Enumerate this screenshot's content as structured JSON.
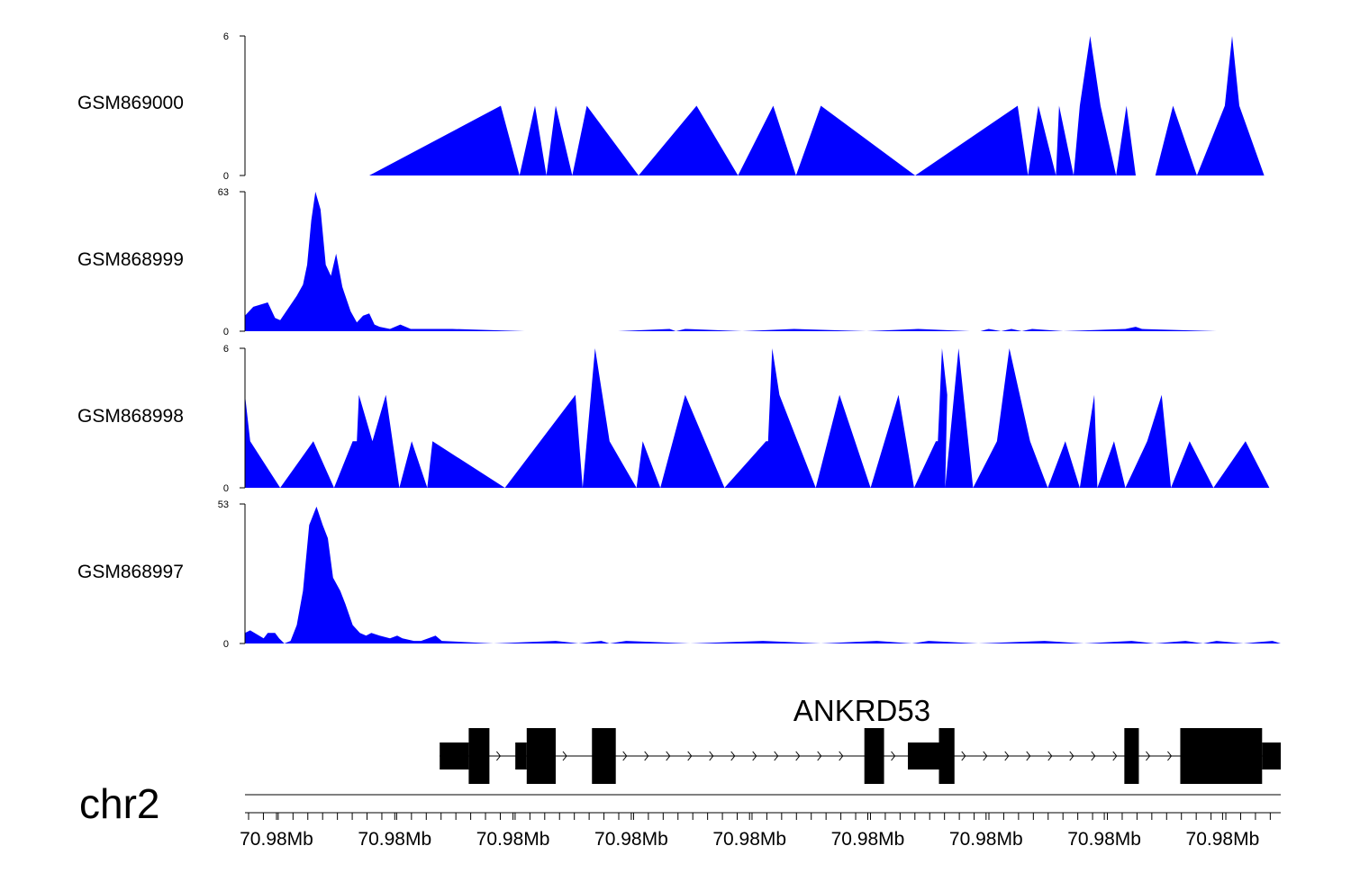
{
  "chart_data": {
    "type": "area",
    "chromosome": "chr2",
    "fill_color": "#0000ff",
    "x_range_index": [
      0,
      100
    ],
    "tracks": [
      {
        "name": "GSM869000",
        "ylim": [
          0,
          6
        ],
        "y_ticks": [
          "0",
          "6"
        ],
        "points": [
          [
            12,
            0
          ],
          [
            24.7,
            3
          ],
          [
            26.5,
            0
          ],
          [
            28,
            3
          ],
          [
            29.1,
            0
          ],
          [
            30,
            3
          ],
          [
            31.6,
            0
          ],
          [
            33,
            3
          ],
          [
            38,
            0
          ],
          [
            43.6,
            3
          ],
          [
            47.6,
            0
          ],
          [
            51,
            3
          ],
          [
            53.2,
            0
          ],
          [
            55.6,
            3
          ],
          [
            64.7,
            0
          ],
          [
            74.6,
            3
          ],
          [
            75.6,
            0
          ],
          [
            76.6,
            3
          ],
          [
            78.3,
            0
          ],
          [
            78.6,
            3
          ],
          [
            80,
            0
          ],
          [
            80.6,
            3
          ],
          [
            81.6,
            6
          ],
          [
            82.6,
            3
          ],
          [
            84.1,
            0
          ],
          [
            85.1,
            3
          ],
          [
            86,
            0
          ],
          [
            87.9,
            0
          ],
          [
            89.6,
            3
          ],
          [
            91.9,
            0
          ],
          [
            94.6,
            3
          ],
          [
            95.3,
            6
          ],
          [
            96,
            3
          ],
          [
            98.4,
            0
          ]
        ]
      },
      {
        "name": "GSM868999",
        "ylim": [
          0,
          63
        ],
        "y_ticks": [
          "0",
          "63"
        ],
        "points": [
          [
            0,
            0
          ],
          [
            0,
            7
          ],
          [
            0.8,
            11
          ],
          [
            2.2,
            13
          ],
          [
            2.9,
            6
          ],
          [
            3.4,
            5
          ],
          [
            5,
            16
          ],
          [
            5.6,
            21
          ],
          [
            6,
            30
          ],
          [
            6.4,
            50
          ],
          [
            6.8,
            63
          ],
          [
            7.3,
            55
          ],
          [
            7.8,
            30
          ],
          [
            8.3,
            25
          ],
          [
            8.8,
            35
          ],
          [
            9.4,
            20
          ],
          [
            10.2,
            9
          ],
          [
            10.8,
            4
          ],
          [
            11.4,
            7
          ],
          [
            12,
            8
          ],
          [
            12.5,
            3
          ],
          [
            13,
            2
          ],
          [
            14,
            1
          ],
          [
            15,
            3
          ],
          [
            16,
            1
          ],
          [
            17,
            1
          ],
          [
            20,
            1
          ],
          [
            27,
            0
          ],
          [
            30,
            0
          ],
          [
            36,
            0
          ],
          [
            41,
            1
          ],
          [
            41.6,
            0
          ],
          [
            42.5,
            1
          ],
          [
            48,
            0
          ],
          [
            53,
            1
          ],
          [
            60,
            0
          ],
          [
            65,
            1
          ],
          [
            70,
            0
          ],
          [
            71,
            0
          ],
          [
            71.8,
            1
          ],
          [
            73,
            0
          ],
          [
            74,
            1
          ],
          [
            75,
            0
          ],
          [
            76,
            1
          ],
          [
            79,
            0
          ],
          [
            85,
            1
          ],
          [
            86,
            2
          ],
          [
            86.6,
            1
          ],
          [
            93.8,
            0
          ]
        ]
      },
      {
        "name": "GSM868998",
        "ylim": [
          0,
          6
        ],
        "y_ticks": [
          "0",
          "6"
        ],
        "points": [
          [
            0,
            0
          ],
          [
            0,
            4
          ],
          [
            0.5,
            2
          ],
          [
            3.4,
            0
          ],
          [
            6.6,
            2
          ],
          [
            8.6,
            0
          ],
          [
            10.4,
            2
          ],
          [
            10.8,
            2
          ],
          [
            11,
            4
          ],
          [
            12.3,
            2
          ],
          [
            13.6,
            4
          ],
          [
            14.9,
            0
          ],
          [
            16.1,
            2
          ],
          [
            17.6,
            0
          ],
          [
            18.1,
            2
          ],
          [
            25.1,
            0
          ],
          [
            31.9,
            4
          ],
          [
            32.6,
            0
          ],
          [
            33.8,
            6
          ],
          [
            35.2,
            2
          ],
          [
            37.8,
            0
          ],
          [
            38.4,
            2
          ],
          [
            40.1,
            0
          ],
          [
            42.5,
            4
          ],
          [
            46.3,
            0
          ],
          [
            50.3,
            2
          ],
          [
            50.5,
            2
          ],
          [
            50.9,
            6
          ],
          [
            51.6,
            4
          ],
          [
            55.1,
            0
          ],
          [
            57.4,
            4
          ],
          [
            60.4,
            0
          ],
          [
            63.1,
            4
          ],
          [
            64.6,
            0
          ],
          [
            66.7,
            2
          ],
          [
            66.9,
            2
          ],
          [
            67.3,
            6
          ],
          [
            67.8,
            4
          ],
          [
            67.6,
            0
          ],
          [
            68.9,
            6
          ],
          [
            70.3,
            0
          ],
          [
            72.6,
            2
          ],
          [
            73.8,
            6
          ],
          [
            75.8,
            2
          ],
          [
            77.5,
            0
          ],
          [
            79.2,
            2
          ],
          [
            80.6,
            0
          ],
          [
            82,
            4
          ],
          [
            82.3,
            0
          ],
          [
            83.9,
            2
          ],
          [
            85,
            0
          ],
          [
            87.1,
            2
          ],
          [
            88.5,
            4
          ],
          [
            89.4,
            0
          ],
          [
            91.2,
            2
          ],
          [
            93.5,
            0
          ],
          [
            96.6,
            2
          ],
          [
            98.9,
            0
          ]
        ]
      },
      {
        "name": "GSM868997",
        "ylim": [
          0,
          53
        ],
        "y_ticks": [
          "0",
          "53"
        ],
        "points": [
          [
            0,
            0
          ],
          [
            0,
            4
          ],
          [
            0.5,
            5
          ],
          [
            1.8,
            2
          ],
          [
            2.2,
            4
          ],
          [
            2.9,
            4
          ],
          [
            3.3,
            2
          ],
          [
            3.8,
            0
          ],
          [
            4.4,
            1
          ],
          [
            5,
            7
          ],
          [
            5.6,
            20
          ],
          [
            6.2,
            45
          ],
          [
            6.9,
            52
          ],
          [
            7.5,
            45
          ],
          [
            8,
            40
          ],
          [
            8.5,
            25
          ],
          [
            9.2,
            20
          ],
          [
            9.7,
            15
          ],
          [
            10.4,
            7
          ],
          [
            11.1,
            4
          ],
          [
            11.7,
            3
          ],
          [
            12.2,
            4
          ],
          [
            13,
            3
          ],
          [
            14,
            2
          ],
          [
            14.7,
            3
          ],
          [
            15.2,
            2
          ],
          [
            16.3,
            1
          ],
          [
            17,
            1
          ],
          [
            17.7,
            2
          ],
          [
            18.4,
            3
          ],
          [
            19,
            1
          ],
          [
            24,
            0
          ],
          [
            30,
            1
          ],
          [
            32.2,
            0
          ],
          [
            34.4,
            1
          ],
          [
            35.2,
            0
          ],
          [
            36.8,
            1
          ],
          [
            43,
            0
          ],
          [
            50,
            1
          ],
          [
            55.6,
            0
          ],
          [
            61,
            1
          ],
          [
            64.4,
            0
          ],
          [
            66,
            1
          ],
          [
            70.8,
            0
          ],
          [
            77.2,
            1
          ],
          [
            81,
            0
          ],
          [
            85.6,
            1
          ],
          [
            87.8,
            0
          ],
          [
            90.8,
            1
          ],
          [
            92.5,
            0
          ],
          [
            93.8,
            1
          ],
          [
            96.4,
            0
          ],
          [
            99.2,
            1
          ],
          [
            100,
            0
          ]
        ]
      }
    ],
    "gene": {
      "name": "ANKRD53",
      "strand": "+",
      "parts": [
        {
          "kind": "utr",
          "start": 18.8,
          "end": 21.6
        },
        {
          "kind": "cds",
          "start": 21.6,
          "end": 23.6
        },
        {
          "kind": "utr",
          "start": 26.1,
          "end": 27.2
        },
        {
          "kind": "cds",
          "start": 27.2,
          "end": 30.0
        },
        {
          "kind": "cds",
          "start": 33.5,
          "end": 35.8
        },
        {
          "kind": "cds",
          "start": 59.8,
          "end": 61.7
        },
        {
          "kind": "utr",
          "start": 64.0,
          "end": 67.0
        },
        {
          "kind": "cds",
          "start": 67.0,
          "end": 68.5
        },
        {
          "kind": "cds",
          "start": 84.9,
          "end": 86.3
        },
        {
          "kind": "cds",
          "start": 90.3,
          "end": 98.2
        },
        {
          "kind": "utr",
          "start": 98.2,
          "end": 100
        }
      ]
    },
    "x_tick_labels": [
      "70.98Mb",
      "70.98Mb",
      "70.98Mb",
      "70.98Mb",
      "70.98Mb",
      "70.98Mb",
      "70.98Mb",
      "70.98Mb",
      "70.98Mb"
    ]
  }
}
